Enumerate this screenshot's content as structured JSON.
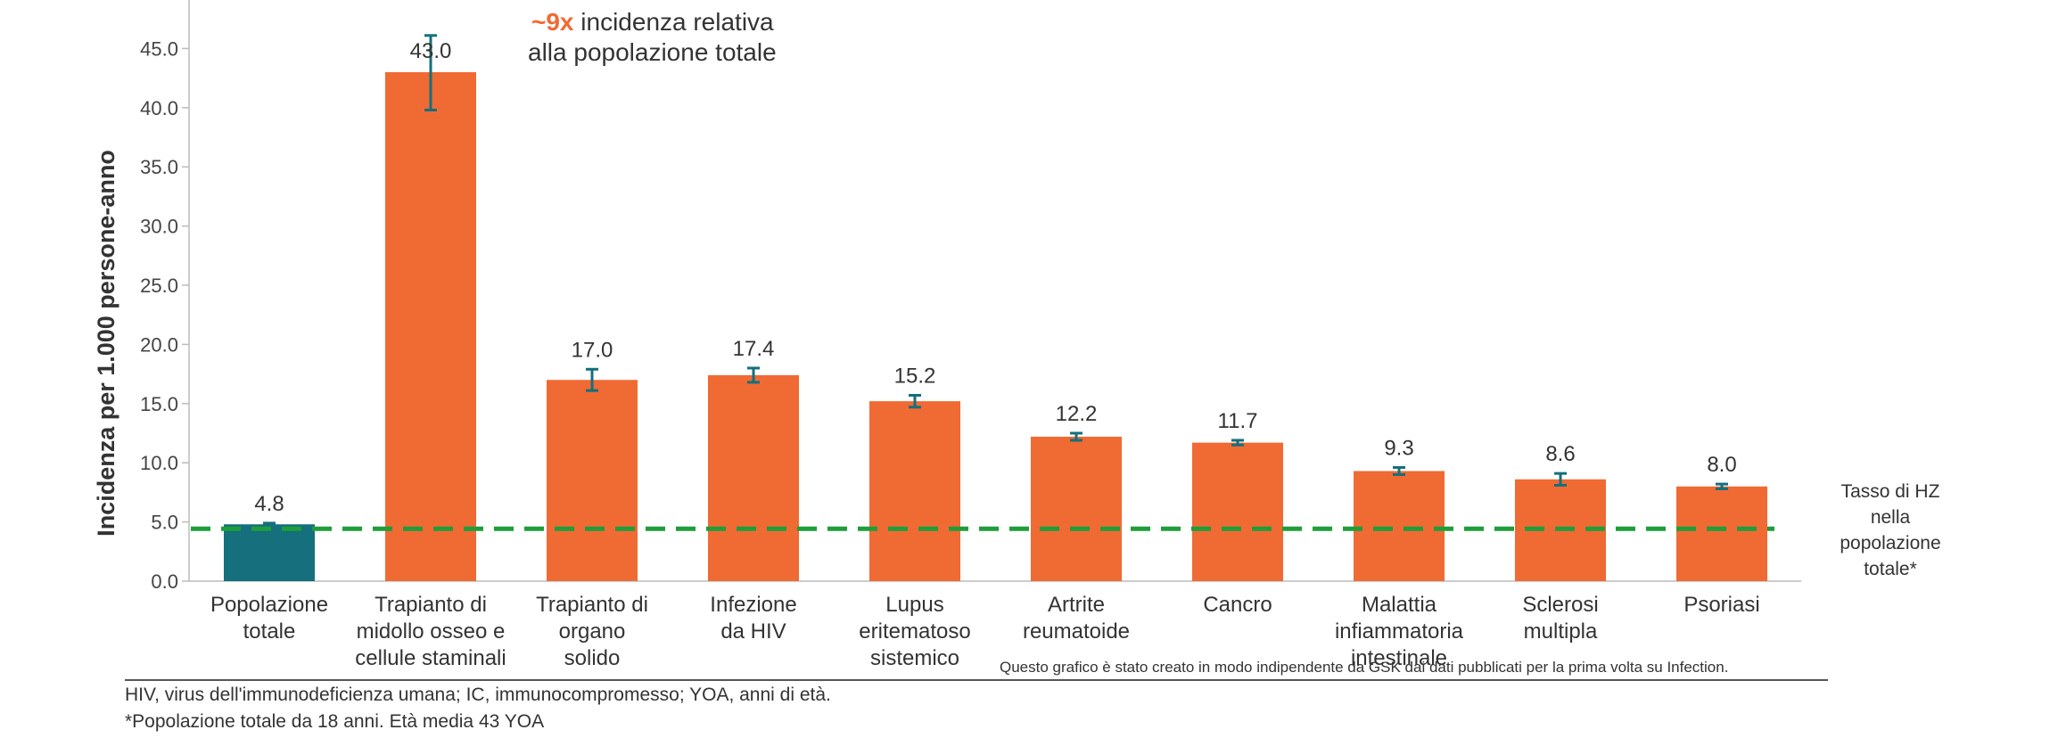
{
  "chart_data": {
    "type": "bar",
    "ylabel": "Incidenza per 1.000 persone-anno",
    "ylim": [
      0,
      47
    ],
    "yticks": [
      "0.0",
      "5.0",
      "10.0",
      "15.0",
      "20.0",
      "25.0",
      "30.0",
      "35.0",
      "40.0",
      "45.0"
    ],
    "grid": false,
    "categories": [
      [
        "Popolazione",
        "totale"
      ],
      [
        "Trapianto di",
        "midollo osseo e",
        "cellule staminali"
      ],
      [
        "Trapianto di",
        "organo",
        "solido"
      ],
      [
        "Infezione",
        "da HIV"
      ],
      [
        "Lupus",
        "eritematoso",
        "sistemico"
      ],
      [
        "Artrite",
        "reumatoide"
      ],
      [
        "Cancro"
      ],
      [
        "Malattia",
        "infiammatoria",
        "intestinale"
      ],
      [
        "Sclerosi",
        "multipla"
      ],
      [
        "Psoriasi"
      ]
    ],
    "values": [
      4.8,
      43.0,
      17.0,
      17.4,
      15.2,
      12.2,
      11.7,
      9.3,
      8.6,
      8.0
    ],
    "value_labels": [
      "4.8",
      "43.0",
      "17.0",
      "17.4",
      "15.2",
      "12.2",
      "11.7",
      "9.3",
      "8.6",
      "8.0"
    ],
    "error_bars": [
      [
        4.7,
        4.9
      ],
      [
        39.8,
        46.1
      ],
      [
        16.1,
        17.9
      ],
      [
        16.8,
        18.0
      ],
      [
        14.7,
        15.7
      ],
      [
        11.9,
        12.5
      ],
      [
        11.5,
        11.9
      ],
      [
        9.0,
        9.6
      ],
      [
        8.1,
        9.1
      ],
      [
        7.8,
        8.2
      ]
    ],
    "bar_colors": [
      "#156f7c",
      "#f06a34",
      "#f06a34",
      "#f06a34",
      "#f06a34",
      "#f06a34",
      "#f06a34",
      "#f06a34",
      "#f06a34",
      "#f06a34"
    ],
    "errorbar_color": "#156f7c",
    "reference_line": {
      "value": 4.8,
      "color": "#1e9e3a",
      "label": [
        "Tasso di HZ",
        "nella",
        "popolazione",
        "totale*"
      ]
    },
    "annotation": {
      "highlight": "~9x",
      "text_line1": " incidenza relativa",
      "text_line2": "alla popolazione totale",
      "highlight_color": "#f06a34"
    }
  },
  "source_note": "Questo grafico è stato creato in modo indipendente da GSK dai dati pubblicati per la prima volta su Infection.",
  "footnotes": [
    "HIV, virus dell'immunodeficienza umana; IC, immunocompromesso; YOA, anni di età.",
    "*Popolazione totale da 18 anni. Età media 43 YOA"
  ]
}
